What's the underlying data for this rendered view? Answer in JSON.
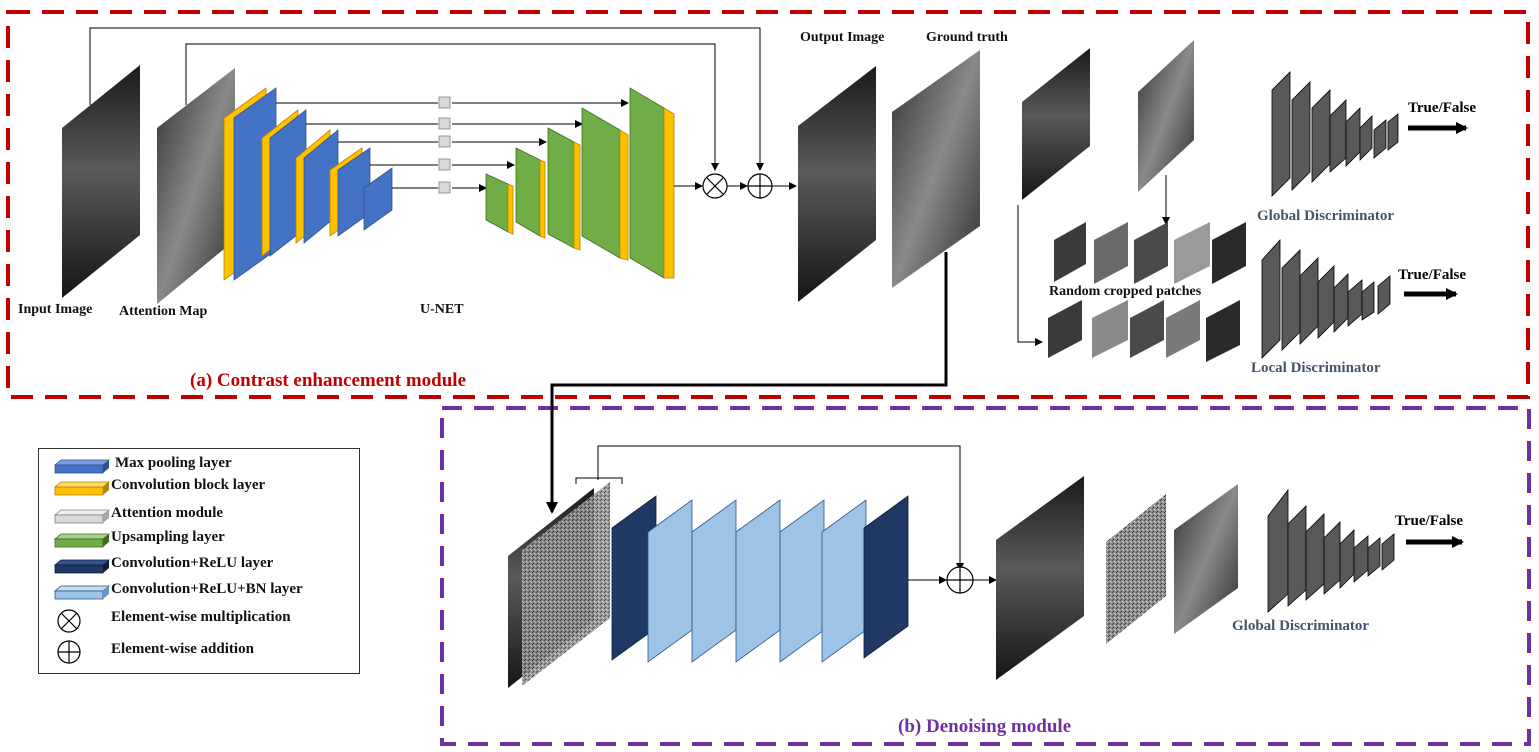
{
  "modules": {
    "contrast_title": "(a) Contrast enhancement module",
    "denoise_title": "(b) Denoising  module"
  },
  "labels": {
    "input_image": "Input Image",
    "attention_map": "Attention Map",
    "unet": "U-NET",
    "output_image": "Output Image",
    "ground_truth": "Ground truth",
    "random_patches": "Random cropped patches",
    "global_disc_a": "Global Discriminator",
    "local_disc": "Local Discriminator",
    "global_disc_b": "Global Discriminator",
    "true_false_1": "True/False",
    "true_false_2": "True/False",
    "true_false_3": "True/False"
  },
  "legend": [
    {
      "name": "legend-max-pooling",
      "label": "Max pooling layer",
      "color": "#4472c4"
    },
    {
      "name": "legend-convolution-block",
      "label": "Convolution block layer",
      "color": "#ffc000"
    },
    {
      "name": "legend-attention-module",
      "label": "Attention module",
      "color": "#d9d9d9"
    },
    {
      "name": "legend-upsampling",
      "label": "Upsampling layer",
      "color": "#70ad47"
    },
    {
      "name": "legend-conv-relu",
      "label": "Convolution+ReLU layer",
      "color": "#1f3864"
    },
    {
      "name": "legend-conv-relu-bn",
      "label": "Convolution+ReLU+BN layer",
      "color": "#9dc3e6"
    },
    {
      "name": "legend-multiplication",
      "label": "Element-wise multiplication",
      "icon": "circle-times-icon"
    },
    {
      "name": "legend-addition",
      "label": "Element-wise addition",
      "icon": "circle-plus-icon"
    }
  ],
  "colors": {
    "module_a_border": "#c00000",
    "module_b_border": "#7030a0",
    "max_pooling": "#4472c4",
    "conv_block": "#ffc000",
    "upsampling": "#70ad47",
    "conv_relu": "#1f3864",
    "conv_relu_bn": "#9dc3e6",
    "discriminator": "#595959"
  }
}
